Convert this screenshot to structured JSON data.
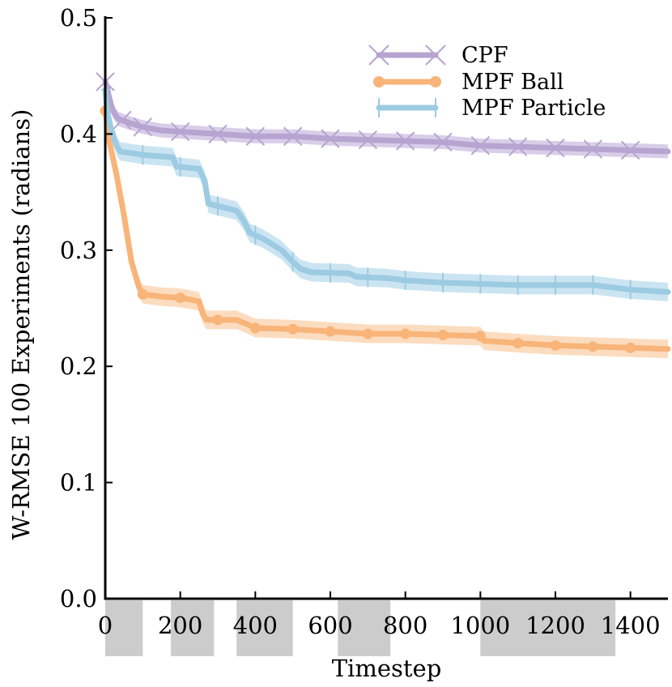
{
  "chart_data": {
    "type": "line",
    "title": "",
    "xlabel": "Timestep",
    "ylabel": "W-RMSE 100 Experiments (radians)",
    "xlim": [
      0,
      1500
    ],
    "ylim": [
      0,
      0.5
    ],
    "x_ticks": [
      0,
      200,
      400,
      600,
      800,
      1000,
      1200,
      1400
    ],
    "x_tick_labels": [
      "0",
      "200",
      "400",
      "600",
      "800",
      "1000",
      "1200",
      "1400"
    ],
    "y_ticks": [
      0,
      0.1,
      0.2,
      0.3,
      0.4,
      0.5
    ],
    "y_tick_labels": [
      "0.0",
      "0.1",
      "0.2",
      "0.3",
      "0.4",
      "0.5"
    ],
    "grid": false,
    "legend_position": "top-right",
    "shaded_intervals": [
      [
        0,
        100
      ],
      [
        175,
        290
      ],
      [
        350,
        500
      ],
      [
        620,
        760
      ],
      [
        1000,
        1360
      ]
    ],
    "series": [
      {
        "name": "CPF",
        "color": "#b7a4d1",
        "band_color": "#cbbde0",
        "marker": "x",
        "band": 0.006,
        "points": [
          [
            0,
            0.445
          ],
          [
            5,
            0.44
          ],
          [
            10,
            0.432
          ],
          [
            20,
            0.42
          ],
          [
            35,
            0.413
          ],
          [
            60,
            0.41
          ],
          [
            100,
            0.406
          ],
          [
            150,
            0.403
          ],
          [
            200,
            0.402
          ],
          [
            300,
            0.4
          ],
          [
            400,
            0.398
          ],
          [
            500,
            0.398
          ],
          [
            600,
            0.396
          ],
          [
            700,
            0.395
          ],
          [
            800,
            0.394
          ],
          [
            900,
            0.393
          ],
          [
            1000,
            0.39
          ],
          [
            1100,
            0.389
          ],
          [
            1200,
            0.388
          ],
          [
            1300,
            0.387
          ],
          [
            1400,
            0.386
          ],
          [
            1500,
            0.385
          ]
        ],
        "markers_x": [
          0,
          45,
          100,
          200,
          300,
          400,
          500,
          600,
          700,
          800,
          900,
          1000,
          1100,
          1200,
          1300,
          1400
        ]
      },
      {
        "name": "MPF Ball",
        "color": "#f8b479",
        "band_color": "#fbd0aa",
        "marker": "o",
        "band": 0.008,
        "points": [
          [
            0,
            0.42
          ],
          [
            10,
            0.395
          ],
          [
            30,
            0.365
          ],
          [
            50,
            0.33
          ],
          [
            70,
            0.29
          ],
          [
            90,
            0.268
          ],
          [
            100,
            0.262
          ],
          [
            150,
            0.26
          ],
          [
            200,
            0.259
          ],
          [
            250,
            0.256
          ],
          [
            260,
            0.245
          ],
          [
            270,
            0.24
          ],
          [
            350,
            0.24
          ],
          [
            380,
            0.236
          ],
          [
            400,
            0.233
          ],
          [
            500,
            0.232
          ],
          [
            600,
            0.23
          ],
          [
            700,
            0.228
          ],
          [
            800,
            0.228
          ],
          [
            900,
            0.227
          ],
          [
            1000,
            0.226
          ],
          [
            1010,
            0.222
          ],
          [
            1100,
            0.22
          ],
          [
            1200,
            0.218
          ],
          [
            1300,
            0.217
          ],
          [
            1400,
            0.216
          ],
          [
            1500,
            0.215
          ]
        ],
        "markers_x": [
          0,
          100,
          200,
          300,
          400,
          500,
          600,
          700,
          800,
          900,
          1000,
          1100,
          1200,
          1300,
          1400
        ]
      },
      {
        "name": "MPF Particle",
        "color": "#9ccbe2",
        "band_color": "#b9dbed",
        "marker": "+",
        "band": 0.008,
        "points": [
          [
            0,
            0.438
          ],
          [
            5,
            0.42
          ],
          [
            15,
            0.405
          ],
          [
            30,
            0.39
          ],
          [
            40,
            0.385
          ],
          [
            100,
            0.382
          ],
          [
            180,
            0.38
          ],
          [
            190,
            0.372
          ],
          [
            250,
            0.37
          ],
          [
            265,
            0.36
          ],
          [
            275,
            0.34
          ],
          [
            300,
            0.338
          ],
          [
            350,
            0.334
          ],
          [
            370,
            0.325
          ],
          [
            385,
            0.315
          ],
          [
            420,
            0.31
          ],
          [
            470,
            0.3
          ],
          [
            500,
            0.29
          ],
          [
            520,
            0.284
          ],
          [
            550,
            0.281
          ],
          [
            650,
            0.28
          ],
          [
            670,
            0.277
          ],
          [
            750,
            0.276
          ],
          [
            800,
            0.274
          ],
          [
            900,
            0.272
          ],
          [
            1000,
            0.271
          ],
          [
            1100,
            0.27
          ],
          [
            1200,
            0.27
          ],
          [
            1300,
            0.27
          ],
          [
            1350,
            0.268
          ],
          [
            1400,
            0.266
          ],
          [
            1500,
            0.264
          ]
        ],
        "markers_x": [
          0,
          100,
          200,
          300,
          400,
          500,
          600,
          700,
          800,
          900,
          1000,
          1100,
          1200,
          1300,
          1400
        ]
      }
    ]
  }
}
